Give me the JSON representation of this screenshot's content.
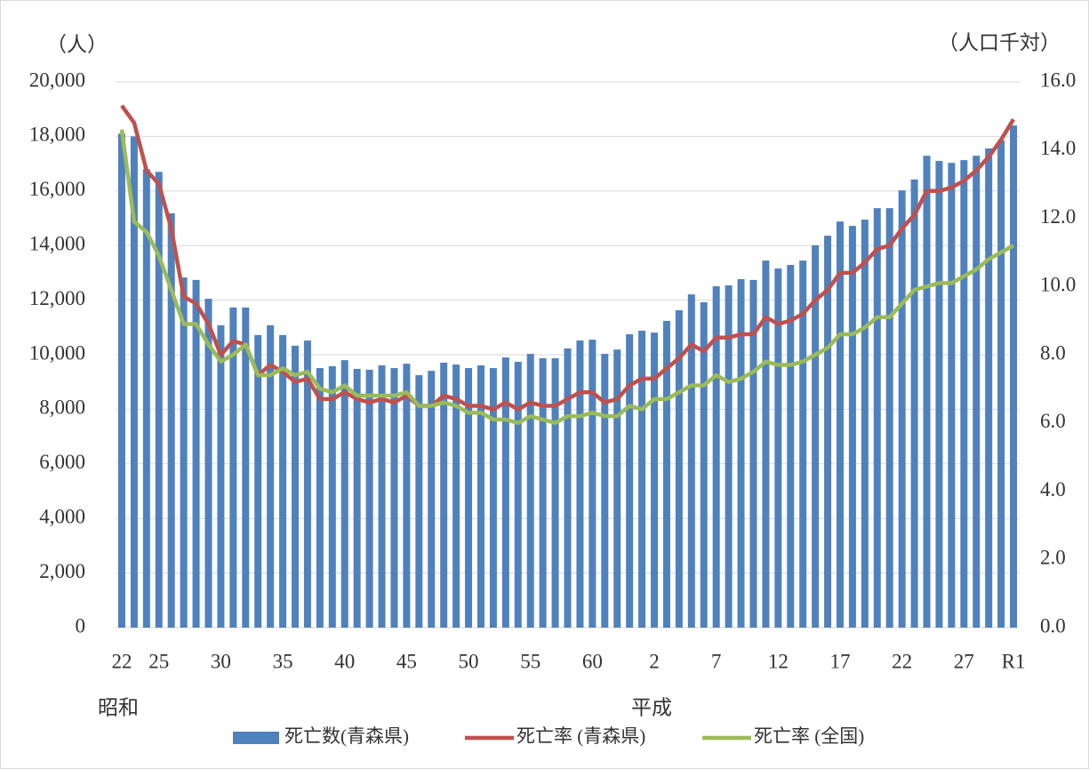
{
  "chart_data": {
    "type": "bar-line",
    "y_label": "（人）",
    "y2_label": "（人口千対）",
    "annotations": [
      "昭和",
      "平成"
    ],
    "categories": [
      "22",
      null,
      null,
      "25",
      null,
      null,
      null,
      null,
      "30",
      null,
      null,
      null,
      null,
      "35",
      null,
      null,
      null,
      null,
      "40",
      null,
      null,
      null,
      null,
      "45",
      null,
      null,
      null,
      null,
      "50",
      null,
      null,
      null,
      null,
      "55",
      null,
      null,
      null,
      null,
      "60",
      null,
      null,
      null,
      null,
      "2",
      null,
      null,
      null,
      null,
      "7",
      null,
      null,
      null,
      null,
      "12",
      null,
      null,
      null,
      null,
      "17",
      null,
      null,
      null,
      null,
      "22",
      null,
      null,
      null,
      null,
      "27",
      null,
      null,
      null,
      "R1"
    ],
    "series": [
      {
        "name": "死亡数(青森県)",
        "color": "#4f81bd",
        "type": "bar",
        "values": [
          18100,
          18000,
          16800,
          16700,
          15180,
          12830,
          12740,
          12050,
          11080,
          11730,
          11730,
          10720,
          11080,
          10720,
          10330,
          10520,
          9510,
          9580,
          9800,
          9480,
          9450,
          9610,
          9510,
          9670,
          9250,
          9410,
          9710,
          9640,
          9510,
          9610,
          9510,
          9900,
          9740,
          10030,
          9870,
          9870,
          10230,
          10520,
          10550,
          10030,
          10190,
          10750,
          10880,
          10810,
          11240,
          11630,
          12210,
          11920,
          12510,
          12540,
          12770,
          12740,
          13450,
          13160,
          13290,
          13450,
          14010,
          14360,
          14880,
          14720,
          14950,
          15370,
          15370,
          16020,
          16420,
          17290,
          17100,
          17030,
          17130,
          17290,
          17560,
          17850,
          18400
        ]
      },
      {
        "name": "死亡率 (青森県)",
        "color": "#c0504d",
        "type": "line",
        "axis": "y2",
        "values": [
          15.3,
          14.8,
          13.4,
          13.0,
          11.7,
          9.7,
          9.5,
          8.9,
          8.0,
          8.4,
          8.3,
          7.4,
          7.7,
          7.5,
          7.2,
          7.3,
          6.7,
          6.7,
          6.9,
          6.7,
          6.6,
          6.7,
          6.6,
          6.8,
          6.5,
          6.5,
          6.8,
          6.7,
          6.5,
          6.5,
          6.4,
          6.6,
          6.4,
          6.6,
          6.5,
          6.5,
          6.7,
          6.9,
          6.9,
          6.6,
          6.7,
          7.1,
          7.3,
          7.3,
          7.6,
          7.9,
          8.3,
          8.1,
          8.5,
          8.5,
          8.6,
          8.6,
          9.1,
          8.9,
          9.0,
          9.2,
          9.6,
          9.9,
          10.4,
          10.4,
          10.7,
          11.1,
          11.2,
          11.7,
          12.1,
          12.8,
          12.8,
          12.9,
          13.1,
          13.4,
          13.8,
          14.3,
          14.9
        ]
      },
      {
        "name": "死亡率 (全国)",
        "color": "#9bbb59",
        "type": "line",
        "axis": "y2",
        "values": [
          14.6,
          11.9,
          11.6,
          10.9,
          9.9,
          8.9,
          8.9,
          8.3,
          7.8,
          8.0,
          8.3,
          7.4,
          7.4,
          7.6,
          7.4,
          7.5,
          7.0,
          6.9,
          7.1,
          6.8,
          6.8,
          6.8,
          6.8,
          6.9,
          6.5,
          6.5,
          6.6,
          6.5,
          6.3,
          6.3,
          6.1,
          6.1,
          6.0,
          6.2,
          6.1,
          6.0,
          6.2,
          6.2,
          6.3,
          6.2,
          6.2,
          6.5,
          6.4,
          6.7,
          6.7,
          6.9,
          7.1,
          7.1,
          7.4,
          7.2,
          7.3,
          7.5,
          7.8,
          7.7,
          7.7,
          7.8,
          8.0,
          8.2,
          8.6,
          8.6,
          8.8,
          9.1,
          9.1,
          9.5,
          9.9,
          10.0,
          10.1,
          10.1,
          10.3,
          10.5,
          10.8,
          11.0,
          11.2
        ]
      }
    ],
    "ylim": [
      0,
      20000
    ],
    "yticks": [
      0,
      {
        "value": 2000,
        "label": "2,000"
      },
      {
        "value": 4000,
        "label": "4,000"
      },
      {
        "value": 6000,
        "label": "6,000"
      },
      {
        "value": 8000,
        "label": "8,000"
      },
      {
        "value": 10000,
        "label": "10,000"
      },
      {
        "value": 12000,
        "label": "12,000"
      },
      {
        "value": 14000,
        "label": "14,000"
      },
      {
        "value": 16000,
        "label": "16,000"
      },
      {
        "value": 18000,
        "label": "18,000"
      },
      {
        "value": 20000,
        "label": "20,000"
      }
    ],
    "y2lim": [
      0,
      16
    ],
    "y2ticks": [
      {
        "value": 0,
        "label": "0.0"
      },
      {
        "value": 2,
        "label": "2.0"
      },
      {
        "value": 4,
        "label": "4.0"
      },
      {
        "value": 6,
        "label": "6.0"
      },
      {
        "value": 8,
        "label": "8.0"
      },
      {
        "value": 10,
        "label": "10.0"
      },
      {
        "value": 12,
        "label": "12.0"
      },
      {
        "value": 14,
        "label": "14.0"
      },
      {
        "value": 16,
        "label": "16.0"
      }
    ],
    "grid": true,
    "legend": "bottom"
  }
}
